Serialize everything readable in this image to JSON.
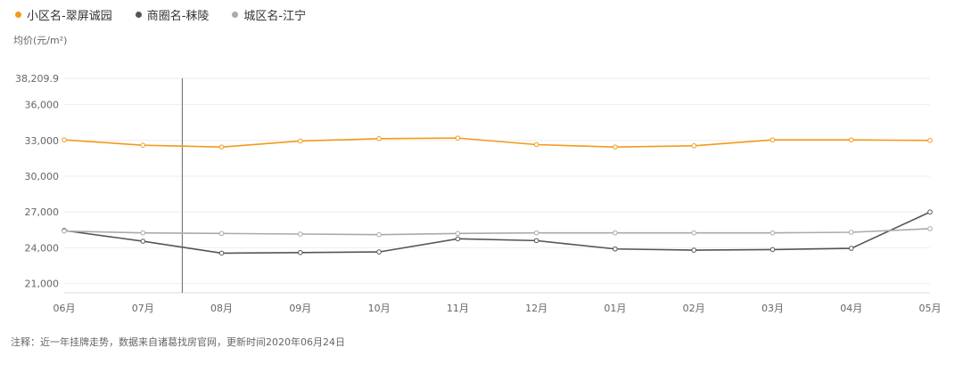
{
  "legend": [
    {
      "label": "小区名-翠屏诚园",
      "color": "#f39a1b"
    },
    {
      "label": "商圈名-秣陵",
      "color": "#555555"
    },
    {
      "label": "城区名-江宁",
      "color": "#aaaaaa"
    }
  ],
  "unit_label": "均价(元/m²)",
  "note": "注释：近一年挂牌走势，数据来自诸葛找房官网，更新时间2020年06月24日",
  "chart_data": {
    "type": "line",
    "title": "",
    "xlabel": "",
    "ylabel": "均价(元/m²)",
    "categories": [
      "06月",
      "07月",
      "08月",
      "09月",
      "10月",
      "11月",
      "12月",
      "01月",
      "02月",
      "03月",
      "04月",
      "05月"
    ],
    "y_ticks": [
      {
        "value": 38209.9,
        "label": "38,209.9"
      },
      {
        "value": 36000,
        "label": "36,000"
      },
      {
        "value": 33000,
        "label": "33,000"
      },
      {
        "value": 30000,
        "label": "30,000"
      },
      {
        "value": 27000,
        "label": "27,000"
      },
      {
        "value": 24000,
        "label": "24,000"
      },
      {
        "value": 21000,
        "label": "21,000"
      }
    ],
    "ylim": [
      20000,
      38209.9
    ],
    "grid": true,
    "series": [
      {
        "name": "小区名-翠屏诚园",
        "color": "#f39a1b",
        "values": [
          33050,
          32600,
          32450,
          32950,
          33150,
          33200,
          32650,
          32450,
          32550,
          33050,
          33050,
          33000
        ]
      },
      {
        "name": "商圈名-秣陵",
        "color": "#555555",
        "values": [
          25450,
          24550,
          23550,
          23600,
          23650,
          24750,
          24600,
          23900,
          23800,
          23850,
          23950,
          27000
        ]
      },
      {
        "name": "城区名-江宁",
        "color": "#aaaaaa",
        "values": [
          25400,
          25250,
          25200,
          25150,
          25100,
          25200,
          25250,
          25250,
          25250,
          25250,
          25300,
          25600
        ]
      }
    ],
    "cursor_between": [
      "07月",
      "08月"
    ]
  }
}
